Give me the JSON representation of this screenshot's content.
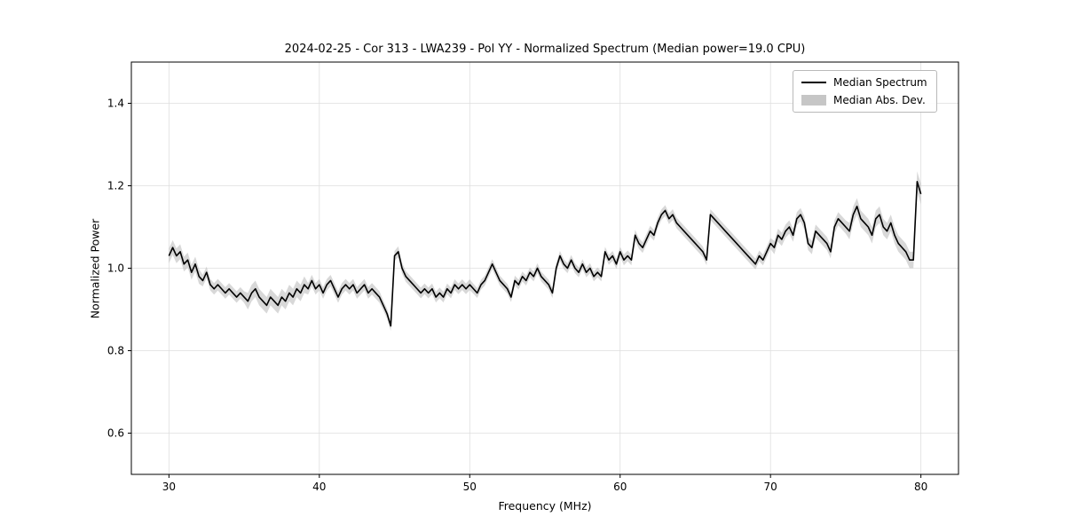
{
  "figure": {
    "title": "2024-02-25 - Cor 313 - LWA239 - Pol YY - Normalized Spectrum (Median power=19.0 CPU)",
    "xlabel": "Frequency (MHz)",
    "ylabel": "Normalized Power"
  },
  "legend": {
    "entries": [
      {
        "label": "Median Spectrum",
        "type": "line",
        "color": "#000000"
      },
      {
        "label": "Median Abs. Dev.",
        "type": "patch",
        "color": "#c6c6c6"
      }
    ],
    "position": "upper right"
  },
  "chart_data": {
    "type": "line",
    "title": "2024-02-25 - Cor 313 - LWA239 - Pol YY - Normalized Spectrum (Median power=19.0 CPU)",
    "xlabel": "Frequency (MHz)",
    "ylabel": "Normalized Power",
    "xlim": [
      27.5,
      82.5
    ],
    "ylim": [
      0.5,
      1.5
    ],
    "xticks": [
      30,
      40,
      50,
      60,
      70,
      80
    ],
    "yticks": [
      0.6,
      0.8,
      1.0,
      1.2,
      1.4
    ],
    "grid": true,
    "line_color": "#000000",
    "band_color": "#b8b8b8",
    "grid_color": "#dedede",
    "series": [
      {
        "name": "Median Spectrum",
        "x_start": 30.0,
        "x_step": 0.25,
        "values": [
          1.03,
          1.05,
          1.03,
          1.04,
          1.01,
          1.02,
          0.99,
          1.01,
          0.98,
          0.97,
          0.99,
          0.96,
          0.95,
          0.96,
          0.95,
          0.94,
          0.95,
          0.94,
          0.93,
          0.94,
          0.93,
          0.92,
          0.94,
          0.95,
          0.93,
          0.92,
          0.91,
          0.93,
          0.92,
          0.91,
          0.93,
          0.92,
          0.94,
          0.93,
          0.95,
          0.94,
          0.96,
          0.95,
          0.97,
          0.95,
          0.96,
          0.94,
          0.96,
          0.97,
          0.95,
          0.93,
          0.95,
          0.96,
          0.95,
          0.96,
          0.94,
          0.95,
          0.96,
          0.94,
          0.95,
          0.94,
          0.93,
          0.91,
          0.89,
          0.86,
          1.03,
          1.04,
          1.0,
          0.98,
          0.97,
          0.96,
          0.95,
          0.94,
          0.95,
          0.94,
          0.95,
          0.93,
          0.94,
          0.93,
          0.95,
          0.94,
          0.96,
          0.95,
          0.96,
          0.95,
          0.96,
          0.95,
          0.94,
          0.96,
          0.97,
          0.99,
          1.01,
          0.99,
          0.97,
          0.96,
          0.95,
          0.93,
          0.97,
          0.96,
          0.98,
          0.97,
          0.99,
          0.98,
          1.0,
          0.98,
          0.97,
          0.96,
          0.94,
          1.0,
          1.03,
          1.01,
          1.0,
          1.02,
          1.0,
          0.99,
          1.01,
          0.99,
          1.0,
          0.98,
          0.99,
          0.98,
          1.04,
          1.02,
          1.03,
          1.01,
          1.04,
          1.02,
          1.03,
          1.02,
          1.08,
          1.06,
          1.05,
          1.07,
          1.09,
          1.08,
          1.11,
          1.13,
          1.14,
          1.12,
          1.13,
          1.11,
          1.1,
          1.09,
          1.08,
          1.07,
          1.06,
          1.05,
          1.04,
          1.02,
          1.13,
          1.12,
          1.11,
          1.1,
          1.09,
          1.08,
          1.07,
          1.06,
          1.05,
          1.04,
          1.03,
          1.02,
          1.01,
          1.03,
          1.02,
          1.04,
          1.06,
          1.05,
          1.08,
          1.07,
          1.09,
          1.1,
          1.08,
          1.12,
          1.13,
          1.11,
          1.06,
          1.05,
          1.09,
          1.08,
          1.07,
          1.06,
          1.04,
          1.1,
          1.12,
          1.11,
          1.1,
          1.09,
          1.13,
          1.15,
          1.12,
          1.11,
          1.1,
          1.08,
          1.12,
          1.13,
          1.1,
          1.09,
          1.11,
          1.08,
          1.06,
          1.05,
          1.04,
          1.02,
          1.02,
          1.21,
          1.18
        ]
      }
    ],
    "mad_segments": [
      {
        "x0": 30.0,
        "x1": 32.0,
        "mad": 0.018
      },
      {
        "x0": 32.0,
        "x1": 35.0,
        "mad": 0.014
      },
      {
        "x0": 35.0,
        "x1": 39.0,
        "mad": 0.02
      },
      {
        "x0": 39.0,
        "x1": 44.0,
        "mad": 0.014
      },
      {
        "x0": 44.0,
        "x1": 45.0,
        "mad": 0.012
      },
      {
        "x0": 45.0,
        "x1": 50.0,
        "mad": 0.013
      },
      {
        "x0": 50.0,
        "x1": 60.0,
        "mad": 0.012
      },
      {
        "x0": 60.0,
        "x1": 70.0,
        "mad": 0.013
      },
      {
        "x0": 70.0,
        "x1": 75.0,
        "mad": 0.016
      },
      {
        "x0": 75.0,
        "x1": 79.5,
        "mad": 0.02
      },
      {
        "x0": 79.5,
        "x1": 80.0,
        "mad": 0.025
      }
    ],
    "legend_entries": [
      "Median Spectrum",
      "Median Abs. Dev."
    ]
  }
}
